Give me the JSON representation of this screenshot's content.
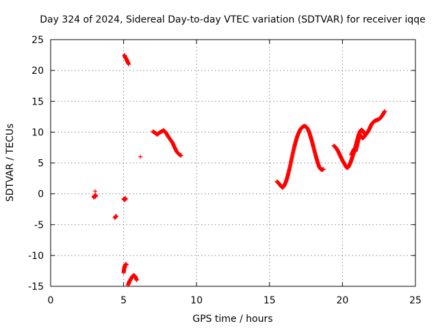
{
  "chart_data": {
    "type": "scatter",
    "title": "Day 324 of 2024, Sidereal Day-to-day VTEC variation (SDTVAR) for receiver iqqe",
    "xlabel": "GPS time / hours",
    "ylabel": "SDTVAR / TECUs",
    "xlim": [
      0,
      25
    ],
    "ylim": [
      -15,
      25
    ],
    "xticks": [
      0,
      5,
      10,
      15,
      20,
      25
    ],
    "yticks": [
      -15,
      -10,
      -5,
      0,
      5,
      10,
      15,
      20,
      25
    ],
    "grid": true,
    "legend": "none",
    "marker": "plus",
    "color": "#ff0000",
    "series": [
      {
        "name": "SDTVAR",
        "segments": [
          {
            "x": [
              2.95,
              3.0,
              3.05,
              3.1
            ],
            "y": [
              -0.6,
              -0.3,
              -0.5,
              -0.2
            ]
          },
          {
            "x": [
              3.05
            ],
            "y": [
              0.4
            ]
          },
          {
            "x": [
              4.4,
              4.45,
              4.5
            ],
            "y": [
              -3.9,
              -3.7,
              -3.6
            ]
          },
          {
            "x": [
              5.0,
              5.05,
              5.1,
              5.15
            ],
            "y": [
              -0.8,
              -1.0,
              -0.7,
              -0.9
            ]
          },
          {
            "x": [
              5.05,
              5.1,
              5.15,
              5.2,
              5.25,
              5.3,
              5.35
            ],
            "y": [
              22.5,
              22.2,
              22.0,
              21.8,
              21.5,
              21.3,
              21.0
            ]
          },
          {
            "x": [
              5.0,
              5.05,
              5.1,
              5.15,
              5.2
            ],
            "y": [
              -12.8,
              -12.0,
              -11.6,
              -11.4,
              -11.5
            ]
          },
          {
            "x": [
              5.3,
              5.4,
              5.5,
              5.6,
              5.7,
              5.8,
              5.9
            ],
            "y": [
              -14.8,
              -14.2,
              -13.8,
              -13.4,
              -13.2,
              -13.4,
              -14.0
            ]
          },
          {
            "x": [
              6.15
            ],
            "y": [
              6.0
            ]
          },
          {
            "x": [
              7.0,
              7.15,
              7.3,
              7.45,
              7.6,
              7.75,
              7.9,
              8.05,
              8.2,
              8.35,
              8.5,
              8.65,
              8.8,
              8.95
            ],
            "y": [
              10.1,
              9.9,
              9.6,
              9.9,
              10.1,
              10.3,
              9.9,
              9.3,
              8.8,
              8.3,
              7.5,
              6.8,
              6.4,
              6.2
            ]
          },
          {
            "x": [
              15.5,
              15.6,
              15.7,
              15.8,
              15.9,
              16.0,
              16.1,
              16.2,
              16.3,
              16.4,
              16.5,
              16.6,
              16.7,
              16.8,
              16.9,
              17.0,
              17.1,
              17.2,
              17.3,
              17.4,
              17.5,
              17.6,
              17.7,
              17.8,
              17.9,
              18.0,
              18.1,
              18.2,
              18.3,
              18.4,
              18.5,
              18.6,
              18.7
            ],
            "y": [
              2.0,
              1.8,
              1.5,
              1.2,
              1.0,
              1.3,
              1.8,
              2.5,
              3.4,
              4.4,
              5.5,
              6.6,
              7.6,
              8.5,
              9.3,
              9.9,
              10.4,
              10.7,
              10.9,
              11.0,
              10.9,
              10.6,
              10.1,
              9.4,
              8.6,
              7.7,
              6.8,
              5.9,
              5.1,
              4.4,
              4.0,
              3.9,
              4.0
            ]
          },
          {
            "x": [
              19.4,
              19.5,
              19.6,
              19.7,
              19.8,
              19.9,
              20.0,
              20.1,
              20.2,
              20.3,
              20.4,
              20.5,
              20.6,
              20.7,
              20.8,
              20.9,
              21.0,
              21.1,
              21.2,
              21.3,
              21.4,
              21.5,
              21.6,
              21.7,
              21.8,
              21.9,
              22.0,
              22.1,
              22.2,
              22.3,
              22.4,
              22.5,
              22.6,
              22.7,
              22.8,
              22.9
            ],
            "y": [
              7.8,
              7.6,
              7.3,
              6.9,
              6.4,
              5.9,
              5.4,
              5.0,
              4.6,
              4.2,
              4.3,
              4.8,
              5.4,
              6.1,
              6.9,
              7.7,
              8.6,
              9.5,
              10.1,
              10.4,
              10.2,
              9.8,
              9.6,
              9.9,
              10.3,
              10.8,
              11.3,
              11.6,
              11.8,
              11.9,
              12.0,
              12.1,
              12.3,
              12.6,
              13.0,
              13.4
            ]
          },
          {
            "x": [
              20.6,
              20.7,
              20.8,
              20.9,
              21.0,
              21.1,
              21.2,
              21.3,
              21.4,
              21.5,
              21.6
            ],
            "y": [
              6.3,
              6.8,
              7.3,
              6.9,
              7.8,
              8.8,
              9.6,
              9.2,
              9.0,
              9.3,
              9.6
            ]
          }
        ]
      }
    ]
  }
}
